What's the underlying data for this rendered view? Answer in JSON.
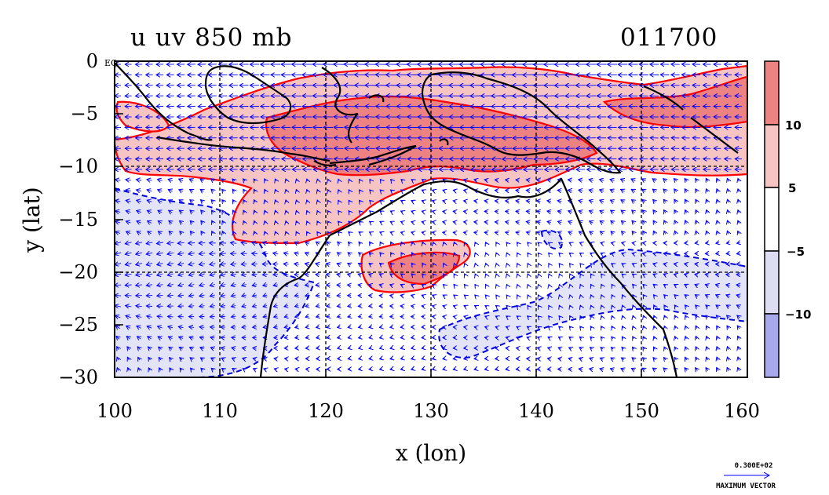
{
  "header": {
    "variable_title": "u uv 850 mb",
    "date_code": "011700"
  },
  "axes": {
    "xlabel": "x (lon)",
    "ylabel": "y (lat)",
    "x_range": [
      100,
      160
    ],
    "y_range": [
      -30,
      0
    ],
    "x_ticks": [
      "100",
      "110",
      "120",
      "130",
      "140",
      "150",
      "160"
    ],
    "y_ticks": [
      "0",
      "−5",
      "−10",
      "−15",
      "−20",
      "−25",
      "−30"
    ],
    "eq_label": "EQ",
    "grid": "dashed lines every 10° lon, 10° lat"
  },
  "colorbar": {
    "levels": [
      "10",
      "5",
      "−5",
      "−10"
    ],
    "colors": [
      "#ec8282",
      "#f7c4c4",
      "#ffffff",
      "#dcdcf4",
      "#a8a8ec"
    ]
  },
  "vector_legend": {
    "value": "0.300E+02",
    "label": "MAXIMUM VECTOR"
  },
  "colors": {
    "positive_contour": "#ff0000",
    "negative_contour": "#0000dd",
    "coastline": "#000000",
    "vectors": "#0000ff"
  }
}
